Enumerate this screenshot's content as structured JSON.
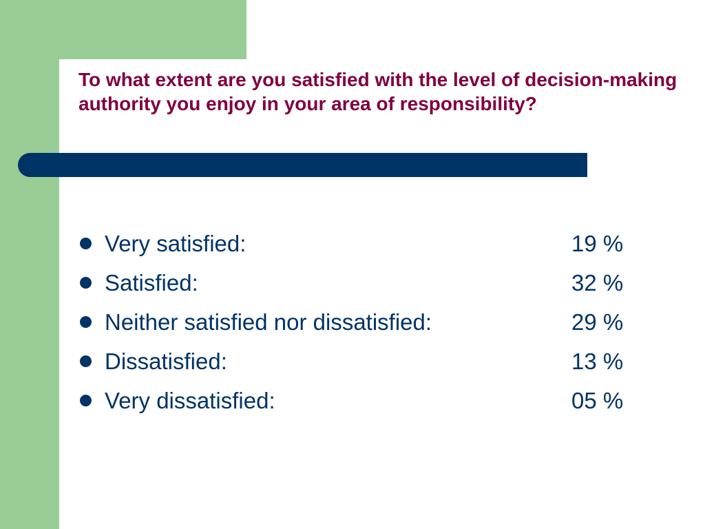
{
  "slide": {
    "title": "To what extent are you satisfied with the level of decision-making authority you enjoy in your area of responsibility?",
    "results": [
      {
        "label": "Very satisfied:",
        "value": "19 %"
      },
      {
        "label": "Satisfied:",
        "value": "32 %"
      },
      {
        "label": "Neither satisfied nor dissatisfied:",
        "value": "29 %"
      },
      {
        "label": "Dissatisfied:",
        "value": "13 %"
      },
      {
        "label": "Very dissatisfied:",
        "value": "05 %"
      }
    ]
  },
  "colors": {
    "accent_green": "#9acd95",
    "title_color": "#800040",
    "text_color": "#003366",
    "bar_color": "#003366",
    "background": "#ffffff"
  }
}
